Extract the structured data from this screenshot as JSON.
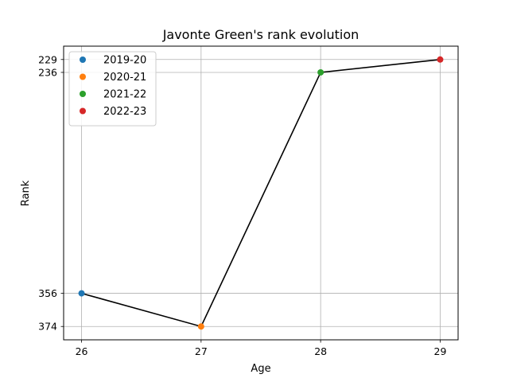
{
  "chart_data": {
    "type": "line",
    "title": "Javonte Green's rank evolution",
    "xlabel": "Age",
    "ylabel": "Rank",
    "x": [
      26,
      27,
      28,
      29
    ],
    "y": [
      356,
      374,
      236,
      229
    ],
    "point_labels": [
      "2019-20",
      "2020-21",
      "2021-22",
      "2022-23"
    ],
    "point_colors": [
      "#1f77b4",
      "#ff7f0e",
      "#2ca02c",
      "#d62728"
    ],
    "line_color": "#000000",
    "xticks": [
      26,
      27,
      28,
      29
    ],
    "yticks": [
      229,
      236,
      356,
      374
    ],
    "y_inverted": true,
    "grid": true,
    "legend_position": "top-left"
  }
}
